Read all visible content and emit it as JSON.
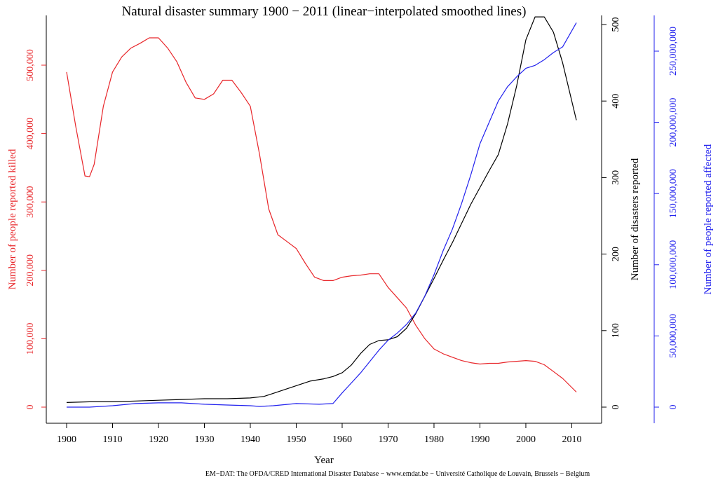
{
  "chart_data": {
    "type": "line",
    "title": "Natural disaster summary 1900 − 2011 (linear−interpolated smoothed lines)",
    "xlabel": "Year",
    "source": "EM−DAT: The OFDA/CRED International Disaster Database − www.emdat.be − Université Catholique de Louvain, Brussels − Belgium",
    "x_ticks": [
      1900,
      1910,
      1920,
      1930,
      1940,
      1950,
      1960,
      1970,
      1980,
      1990,
      2000,
      2010
    ],
    "xlim": [
      1900,
      2011
    ],
    "grid": false,
    "axes": {
      "killed": {
        "label": "Number of people reported killed",
        "color": "#e8262a",
        "side": "left",
        "ylim": [
          0,
          540000
        ],
        "ticks": [
          0,
          100000,
          200000,
          300000,
          400000,
          500000
        ],
        "tick_labels": [
          "0",
          "100,000",
          "200,000",
          "300,000",
          "400,000",
          "500,000"
        ]
      },
      "disasters": {
        "label": "Number of disasters reported",
        "color": "#000000",
        "side": "right",
        "ylim": [
          0,
          500
        ],
        "ticks": [
          0,
          100,
          200,
          300,
          400,
          500
        ],
        "tick_labels": [
          "0",
          "100",
          "200",
          "300",
          "400",
          "500"
        ]
      },
      "affected": {
        "label": "Number of people reported affected",
        "color": "#2222ee",
        "side": "right-outer",
        "ylim": [
          0,
          250000000
        ],
        "ticks": [
          0,
          50000000,
          100000000,
          150000000,
          200000000,
          250000000
        ],
        "tick_labels": [
          "0",
          "50,000,000",
          "100,000,000",
          "150,000,000",
          "200,000,000",
          "250,000,000"
        ]
      }
    },
    "series": [
      {
        "axis": "killed",
        "color": "#e8262a",
        "x": [
          1900,
          1902,
          1904,
          1905,
          1906,
          1908,
          1910,
          1912,
          1914,
          1916,
          1918,
          1920,
          1922,
          1924,
          1926,
          1928,
          1930,
          1932,
          1934,
          1936,
          1938,
          1940,
          1942,
          1944,
          1946,
          1948,
          1950,
          1952,
          1954,
          1956,
          1958,
          1960,
          1962,
          1964,
          1966,
          1968,
          1970,
          1972,
          1974,
          1976,
          1978,
          1980,
          1982,
          1984,
          1986,
          1988,
          1990,
          1992,
          1994,
          1996,
          1998,
          2000,
          2002,
          2004,
          2006,
          2008,
          2011
        ],
        "y": [
          490000,
          410000,
          338000,
          337000,
          355000,
          440000,
          490000,
          512000,
          525000,
          532000,
          540000,
          540000,
          525000,
          505000,
          475000,
          452000,
          450000,
          458000,
          478000,
          478000,
          460000,
          440000,
          370000,
          290000,
          252000,
          242000,
          232000,
          210000,
          190000,
          185000,
          185000,
          190000,
          192000,
          193000,
          195000,
          195000,
          175000,
          160000,
          145000,
          120000,
          100000,
          85000,
          78000,
          73000,
          68000,
          65000,
          63000,
          64000,
          64000,
          66000,
          67000,
          68000,
          67000,
          62000,
          52000,
          42000,
          22000
        ]
      },
      {
        "axis": "disasters",
        "color": "#000000",
        "x": [
          1900,
          1905,
          1910,
          1915,
          1920,
          1925,
          1930,
          1935,
          1940,
          1943,
          1946,
          1950,
          1953,
          1956,
          1958,
          1960,
          1962,
          1964,
          1966,
          1968,
          1970,
          1972,
          1974,
          1976,
          1978,
          1980,
          1982,
          1984,
          1986,
          1988,
          1990,
          1992,
          1994,
          1996,
          1998,
          2000,
          2002,
          2004,
          2006,
          2008,
          2011
        ],
        "y": [
          6,
          7,
          7,
          8,
          9,
          10,
          11,
          11,
          12,
          14,
          20,
          28,
          34,
          37,
          40,
          45,
          55,
          70,
          82,
          87,
          88,
          92,
          103,
          122,
          145,
          168,
          192,
          215,
          240,
          265,
          287,
          309,
          330,
          370,
          420,
          480,
          510,
          510,
          490,
          450,
          375
        ]
      },
      {
        "axis": "affected",
        "color": "#2222ee",
        "x": [
          1900,
          1905,
          1910,
          1915,
          1920,
          1925,
          1930,
          1935,
          1940,
          1942,
          1945,
          1950,
          1955,
          1958,
          1960,
          1962,
          1964,
          1966,
          1968,
          1970,
          1972,
          1974,
          1976,
          1978,
          1980,
          1982,
          1984,
          1986,
          1988,
          1990,
          1992,
          1994,
          1996,
          1998,
          2000,
          2002,
          2004,
          2006,
          2008,
          2011
        ],
        "y": [
          0,
          0,
          1000000,
          2500000,
          3000000,
          3000000,
          2000000,
          1500000,
          1000000,
          500000,
          1000000,
          2500000,
          2000000,
          2500000,
          10000000,
          17000000,
          24000000,
          32000000,
          40000000,
          47000000,
          52000000,
          58000000,
          66000000,
          78000000,
          93000000,
          110000000,
          125000000,
          143000000,
          163000000,
          185000000,
          200000000,
          215000000,
          225000000,
          232000000,
          238000000,
          240000000,
          244000000,
          249000000,
          253000000,
          270000000
        ]
      }
    ]
  }
}
